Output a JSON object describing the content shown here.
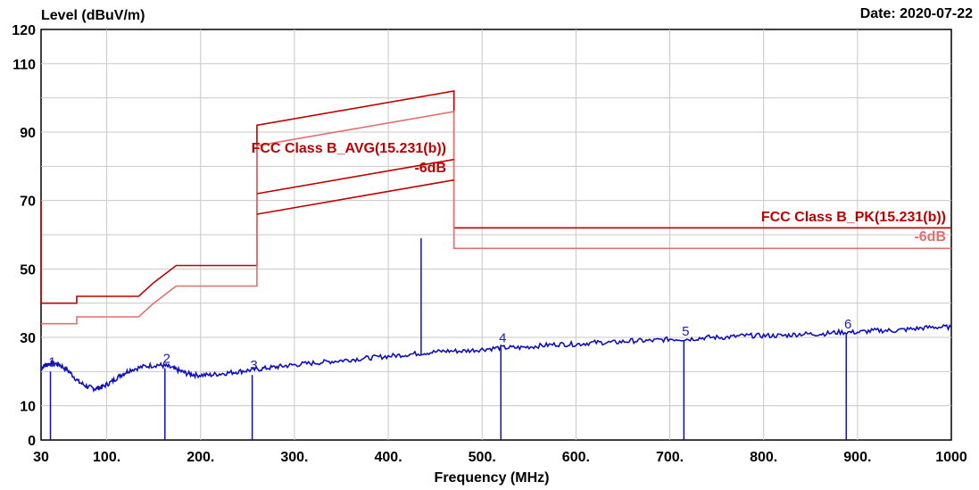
{
  "chart_data": {
    "type": "line",
    "title": "",
    "ylabel": "Level (dBuV/m)",
    "xlabel": "Frequency (MHz)",
    "date_label": "Date: 2020-07-22",
    "xlim": [
      30,
      1000
    ],
    "ylim": [
      0,
      120
    ],
    "x_ticks": [
      30,
      100,
      200,
      300,
      400,
      500,
      600,
      700,
      800,
      900,
      1000
    ],
    "x_tick_labels": [
      "30",
      "100.",
      "200.",
      "300.",
      "400.",
      "500.",
      "600.",
      "700.",
      "800.",
      "900.",
      "1000"
    ],
    "y_ticks": [
      0,
      10,
      30,
      50,
      70,
      90,
      110,
      120
    ],
    "y_tick_labels": [
      "0",
      "10",
      "30",
      "50",
      "70",
      "90",
      "110",
      "120"
    ],
    "grid": true,
    "annotations": {
      "avg_limit": "FCC Class B_AVG(15.231(b))",
      "avg_margin": "-6dB",
      "pk_limit": "FCC Class B_PK(15.231(b))",
      "pk_margin": "-6dB"
    },
    "limit_lines": [
      {
        "points": [
          [
            30,
            70
          ],
          [
            30,
            40
          ],
          [
            40,
            40
          ],
          [
            40,
            40
          ],
          [
            68,
            40
          ],
          [
            68,
            42
          ],
          [
            134,
            42
          ],
          [
            150,
            46
          ],
          [
            174,
            51
          ],
          [
            216,
            51
          ],
          [
            260,
            51
          ],
          [
            260,
            92
          ],
          [
            470,
            102
          ],
          [
            470,
            62
          ],
          [
            1000,
            62
          ]
        ],
        "color": "#c00000"
      },
      {
        "points": [
          [
            30,
            34
          ],
          [
            68,
            34
          ],
          [
            68,
            36
          ],
          [
            134,
            36
          ],
          [
            150,
            40
          ],
          [
            174,
            45
          ],
          [
            260,
            45
          ],
          [
            260,
            86
          ],
          [
            470,
            96
          ],
          [
            470,
            56
          ],
          [
            1000,
            56
          ]
        ],
        "color": "#e07070"
      },
      {
        "points": [
          [
            260,
            72
          ],
          [
            470,
            82
          ]
        ],
        "color": "#c00000"
      },
      {
        "points": [
          [
            260,
            66
          ],
          [
            470,
            76
          ]
        ],
        "color": "#c00000"
      }
    ],
    "series": [
      {
        "color": "#1010c0",
        "x": [
          30,
          35,
          42,
          50,
          60,
          70,
          80,
          88,
          95,
          105,
          115,
          125,
          140,
          155,
          165,
          175,
          185,
          195,
          210,
          225,
          240,
          255,
          270,
          285,
          300,
          320,
          340,
          360,
          380,
          400,
          420,
          440,
          460,
          480,
          500,
          520,
          540,
          560,
          580,
          600,
          620,
          640,
          660,
          680,
          700,
          720,
          740,
          760,
          780,
          800,
          820,
          840,
          860,
          880,
          900,
          920,
          940,
          960,
          980,
          1000
        ],
        "y": [
          21,
          22,
          22.5,
          22,
          20,
          17,
          15.5,
          15,
          15.5,
          17,
          19,
          20.5,
          21.5,
          22,
          21.5,
          20.5,
          19.5,
          19,
          19,
          19.5,
          20,
          20.5,
          21,
          21.5,
          22,
          22.5,
          23,
          23.5,
          24,
          24.5,
          25,
          25.5,
          26,
          26,
          26.5,
          27,
          27,
          27.5,
          28,
          28,
          28.5,
          28.5,
          29,
          29,
          29.5,
          29.5,
          30,
          30,
          30.5,
          30.5,
          30.5,
          31,
          31,
          31.5,
          31.5,
          32,
          32,
          32.5,
          33,
          33
        ]
      }
    ],
    "markers": [
      {
        "label": "1",
        "x": 40,
        "y": 20
      },
      {
        "label": "2",
        "x": 162,
        "y": 21
      },
      {
        "label": "3",
        "x": 255,
        "y": 19
      },
      {
        "label": "4",
        "x": 520,
        "y": 27
      },
      {
        "label": "5",
        "x": 715,
        "y": 29
      },
      {
        "label": "6",
        "x": 888,
        "y": 31
      }
    ],
    "spike": {
      "x": 435,
      "y": 59
    }
  }
}
